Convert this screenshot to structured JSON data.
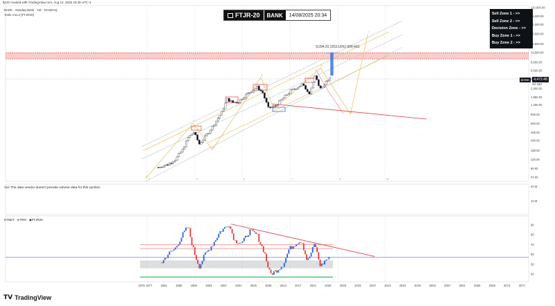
{
  "top_credit": "ftjr20 created with TradingView.com, Aug 14, 2025 20:39 UTC-3",
  "symbol_line": "BANK · Nasdaq Bank · 1M · NASDAQ",
  "tools_line": "Tools V11.2 [FTJR20]",
  "header": {
    "logo": "FTJR-20",
    "badge": "BANK",
    "date": "14/08/2025 20:34"
  },
  "zones": [
    "Sell Zone 1 - >>",
    "Sell Zone 2 - >>",
    "Decision Zone - >>",
    "Buy Zone 1 - >>",
    "Buy Zone 2 - >>"
  ],
  "annotation": "9,094.91 (203.16%) 909,491",
  "price_label": {
    "symbol": "BANK",
    "price": "4,472.48",
    "sub": "4d 18d"
  },
  "volume_note": "Vol: The data vendor doesn't provide volume data for this symbol.",
  "indicator_label": "KTNET · 9 PRO · ◆FTJR20",
  "footer_brand": "TradingView",
  "colors": {
    "grid": "#e6e9ee",
    "red": "#e53935",
    "blue": "#1e63e9",
    "yellow": "#e9c46a",
    "gray": "#9aa0a6",
    "green": "#22c55e",
    "bullBody": "#ffffff",
    "bearBody": "#131722",
    "blueLine": "#5b5fd0"
  },
  "chart_data": [
    {
      "type": "candlestick",
      "y_scale": "log",
      "y_tick_labels": [
        "110,000.00",
        "75,000.00",
        "51,000.00",
        "33,500.00",
        "21,500.00",
        "14,500.00",
        "9,500.00",
        "6,500.00",
        "4,400.00",
        "2,900.00",
        "1,950.00",
        "1,400.00",
        "900.00",
        "600.00",
        "400.00",
        "280.00",
        "180.00",
        "120.00",
        "80.00",
        "54.00"
      ],
      "x_tick_labels": [
        "1975",
        "1977",
        "1981",
        "1985",
        "1989",
        "1993",
        "1997",
        "2001",
        "2005",
        "2009",
        "2013",
        "2017",
        "2021",
        "2025",
        "2029",
        "2033",
        "2037",
        "2041",
        "2045",
        "2049",
        "2053",
        "2057",
        "2061",
        "2065",
        "2069",
        "2073",
        "2077"
      ],
      "approx_close_path": [
        {
          "x": 1979.5,
          "y": 84
        },
        {
          "x": 1980.5,
          "y": 90
        },
        {
          "x": 1982,
          "y": 95
        },
        {
          "x": 1984,
          "y": 120
        },
        {
          "x": 1986,
          "y": 185
        },
        {
          "x": 1987.5,
          "y": 320
        },
        {
          "x": 1989,
          "y": 410
        },
        {
          "x": 1990.5,
          "y": 240
        },
        {
          "x": 1992,
          "y": 330
        },
        {
          "x": 1994,
          "y": 520
        },
        {
          "x": 1996.5,
          "y": 1000
        },
        {
          "x": 1998,
          "y": 1800
        },
        {
          "x": 1999.5,
          "y": 1550
        },
        {
          "x": 2001,
          "y": 1600
        },
        {
          "x": 2003,
          "y": 2200
        },
        {
          "x": 2006,
          "y": 3100
        },
        {
          "x": 2007.5,
          "y": 2400
        },
        {
          "x": 2009,
          "y": 1200
        },
        {
          "x": 2011,
          "y": 1350
        },
        {
          "x": 2013,
          "y": 1900
        },
        {
          "x": 2015,
          "y": 2600
        },
        {
          "x": 2018,
          "y": 3500
        },
        {
          "x": 2020,
          "y": 2400
        },
        {
          "x": 2021.5,
          "y": 4900
        },
        {
          "x": 2023,
          "y": 2900
        },
        {
          "x": 2024.5,
          "y": 3900
        },
        {
          "x": 2025.6,
          "y": 4472.48
        }
      ],
      "horizontal_zone": {
        "from": 11000,
        "to": 14500,
        "color": "#e53935"
      },
      "projection_box": {
        "x": 2026,
        "from": 5200,
        "to": 14500,
        "color": "#1e63e9"
      }
    },
    {
      "type": "oscillator",
      "y_tick_labels": [
        "90",
        "80",
        "70",
        "60",
        "50",
        "40"
      ],
      "levels": [
        70,
        66,
        57
      ],
      "approx_values": [
        {
          "x": 1980.5,
          "y": 52
        },
        {
          "x": 1982,
          "y": 60
        },
        {
          "x": 1984,
          "y": 66
        },
        {
          "x": 1986,
          "y": 80
        },
        {
          "x": 1987.5,
          "y": 89
        },
        {
          "x": 1989,
          "y": 64
        },
        {
          "x": 1990.5,
          "y": 48
        },
        {
          "x": 1992,
          "y": 60
        },
        {
          "x": 1994,
          "y": 70
        },
        {
          "x": 1996,
          "y": 83
        },
        {
          "x": 1998.5,
          "y": 91
        },
        {
          "x": 2000,
          "y": 74
        },
        {
          "x": 2002,
          "y": 72
        },
        {
          "x": 2004,
          "y": 84
        },
        {
          "x": 2006,
          "y": 80
        },
        {
          "x": 2008,
          "y": 62
        },
        {
          "x": 2009.5,
          "y": 40
        },
        {
          "x": 2011,
          "y": 43
        },
        {
          "x": 2013,
          "y": 50
        },
        {
          "x": 2014.5,
          "y": 65
        },
        {
          "x": 2016.5,
          "y": 72
        },
        {
          "x": 2018,
          "y": 74
        },
        {
          "x": 2019.5,
          "y": 53
        },
        {
          "x": 2021.5,
          "y": 72
        },
        {
          "x": 2023,
          "y": 48
        },
        {
          "x": 2024.5,
          "y": 55
        },
        {
          "x": 2025.6,
          "y": 56
        }
      ]
    }
  ]
}
